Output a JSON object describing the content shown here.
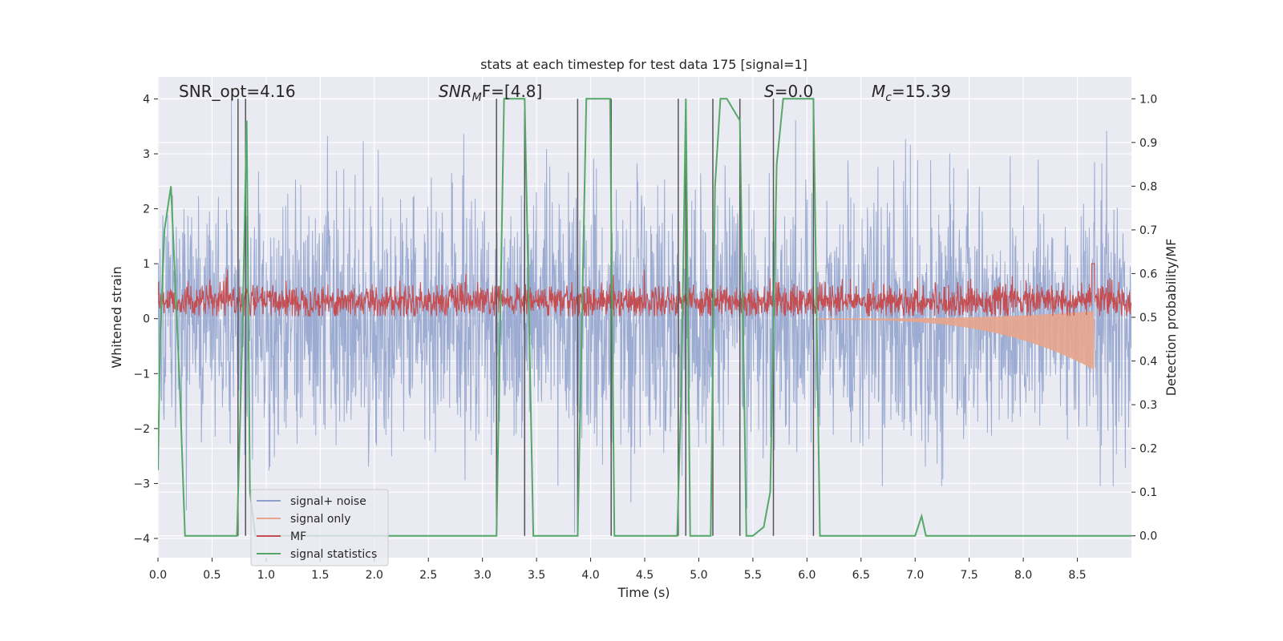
{
  "chart_data": {
    "type": "line",
    "title": "stats at each timestep for test data 175 [signal=1]",
    "xlabel": "Time (s)",
    "ylabel_left": "Whitened strain",
    "ylabel_right": "Detection probability/MF",
    "xlim": [
      0.0,
      9.0
    ],
    "ylim_left": [
      -4.35,
      4.4
    ],
    "ylim_right": [
      -0.05,
      1.05
    ],
    "x_ticks": [
      "0.0",
      "0.5",
      "1.0",
      "1.5",
      "2.0",
      "2.5",
      "3.0",
      "3.5",
      "4.0",
      "4.5",
      "5.0",
      "5.5",
      "6.0",
      "6.5",
      "7.0",
      "7.5",
      "8.0",
      "8.5"
    ],
    "y_ticks_left": [
      "4",
      "3",
      "2",
      "1",
      "0",
      "−1",
      "−2",
      "−3",
      "−4"
    ],
    "y_ticks_right": [
      "1.0",
      "0.9",
      "0.8",
      "0.7",
      "0.6",
      "0.5",
      "0.4",
      "0.3",
      "0.2",
      "0.1",
      "0.0"
    ],
    "grid": true,
    "legend_position": "lower-left",
    "annotations": {
      "snr_opt": "SNR_opt=4.16",
      "snr_mf_main": "SNR",
      "snr_mf_sub": "M",
      "snr_mf_rest": "F=[4.8]",
      "s_main": "S",
      "s_rest": "=0.0",
      "mc_main": "M",
      "mc_sub": "c",
      "mc_rest": "=15.39"
    },
    "series": [
      {
        "name": "signal+ noise",
        "color": "#8da0cb",
        "kind": "noise",
        "amplitude_left": [
          -3.9,
          4.0
        ]
      },
      {
        "name": "signal only",
        "color": "#e8a58c",
        "kind": "chirp",
        "x_start": 6.1,
        "x_end": 8.65,
        "peak_left": -0.95
      },
      {
        "name": "MF",
        "color": "#c44e52",
        "kind": "noise",
        "range_left": [
          0.05,
          1.0
        ]
      },
      {
        "name": "signal statistics",
        "color": "#55a868",
        "axis": "right",
        "x": [
          0.0,
          0.02,
          0.06,
          0.12,
          0.2,
          0.25,
          0.73,
          0.78,
          0.82,
          0.85,
          0.9,
          3.13,
          3.2,
          3.39,
          3.47,
          3.88,
          3.96,
          4.18,
          4.22,
          4.8,
          4.84,
          4.88,
          4.92,
          5.11,
          5.15,
          5.2,
          5.26,
          5.38,
          5.44,
          5.5,
          5.6,
          5.66,
          5.72,
          5.78,
          6.06,
          6.12,
          7.0,
          7.06,
          7.1,
          9.0
        ],
        "y": [
          0.15,
          0.45,
          0.7,
          0.8,
          0.35,
          0.0,
          0.0,
          0.45,
          0.95,
          0.1,
          0.0,
          0.0,
          1.0,
          1.0,
          0.0,
          0.0,
          1.0,
          1.0,
          0.0,
          0.0,
          0.35,
          1.0,
          0.0,
          0.0,
          0.8,
          1.0,
          1.0,
          0.95,
          0.0,
          0.0,
          0.02,
          0.1,
          0.85,
          1.0,
          1.0,
          0.0,
          0.0,
          0.045,
          0.0,
          0.0
        ]
      }
    ],
    "vertical_lines_x": [
      0.74,
      0.81,
      3.13,
      3.39,
      3.88,
      4.19,
      4.81,
      4.88,
      5.13,
      5.38,
      5.69,
      6.06
    ]
  }
}
